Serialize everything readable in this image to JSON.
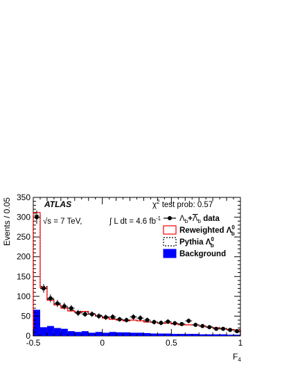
{
  "chart_data": {
    "type": "histogram",
    "experiment": "ATLAS",
    "energy_label": "√s = 7 TeV,",
    "lumi_label": "∫ L dt = 4.6 fb",
    "lumi_exponent": "-1",
    "chi2_label": "χ",
    "chi2_exponent": "2",
    "chi2_text": " test prob: 0.57",
    "xlabel": "F",
    "xlabel_sub": "4",
    "ylabel": "Events / 0.05",
    "xlim": [
      -0.5,
      1.0
    ],
    "ylim": [
      0,
      350
    ],
    "bin_width": 0.05,
    "x_ticks": [
      {
        "value": -0.5,
        "label": "-0.5"
      },
      {
        "value": 0,
        "label": "0"
      },
      {
        "value": 0.5,
        "label": "0.5"
      },
      {
        "value": 1.0,
        "label": "1"
      }
    ],
    "y_ticks": [
      {
        "value": 0,
        "label": "0"
      },
      {
        "value": 50,
        "label": "50"
      },
      {
        "value": 100,
        "label": "100"
      },
      {
        "value": 150,
        "label": "150"
      },
      {
        "value": 200,
        "label": "200"
      },
      {
        "value": 250,
        "label": "250"
      },
      {
        "value": 300,
        "label": "300"
      },
      {
        "value": 350,
        "label": "350"
      }
    ],
    "legend": {
      "placement": "top-right",
      "data": {
        "prefix": "Λ",
        "sub1": "b",
        "mid": "+",
        "overbar": "Λ",
        "sub2": "b",
        "suffix": " data"
      },
      "reweighted": {
        "text": "Reweighted Λ",
        "sup": "0",
        "sub": "b"
      },
      "pythia": {
        "text": "Pythia Λ",
        "sup": "0",
        "sub": "b"
      },
      "background": {
        "text": "Background"
      }
    },
    "series": {
      "data": {
        "x": [
          -0.475,
          -0.425,
          -0.375,
          -0.325,
          -0.275,
          -0.225,
          -0.175,
          -0.125,
          -0.075,
          -0.025,
          0.025,
          0.075,
          0.125,
          0.175,
          0.225,
          0.275,
          0.325,
          0.375,
          0.425,
          0.475,
          0.525,
          0.575,
          0.625,
          0.675,
          0.725,
          0.775,
          0.825,
          0.875,
          0.925,
          0.975
        ],
        "y": [
          300,
          120,
          95,
          82,
          75,
          70,
          58,
          55,
          55,
          50,
          47,
          48,
          42,
          40,
          48,
          45,
          40,
          35,
          33,
          36,
          32,
          30,
          38,
          28,
          25,
          22,
          18,
          18,
          15,
          12
        ],
        "err": [
          17,
          11,
          10,
          9,
          9,
          8,
          8,
          7,
          7,
          7,
          7,
          7,
          6,
          6,
          7,
          7,
          6,
          6,
          6,
          6,
          6,
          5,
          6,
          5,
          5,
          5,
          4,
          4,
          4,
          4
        ]
      },
      "reweighted": [
        312,
        122,
        90,
        78,
        70,
        63,
        60,
        62,
        55,
        50,
        45,
        42,
        40,
        38,
        40,
        38,
        35,
        35,
        32,
        33,
        30,
        28,
        28,
        28,
        25,
        22,
        20,
        18,
        16,
        15
      ],
      "pythia": [
        305,
        125,
        92,
        80,
        72,
        65,
        62,
        60,
        56,
        52,
        48,
        44,
        42,
        40,
        40,
        38,
        36,
        34,
        32,
        32,
        30,
        28,
        28,
        27,
        25,
        23,
        21,
        19,
        17,
        16
      ],
      "background": [
        66,
        22,
        25,
        20,
        18,
        12,
        10,
        12,
        8,
        10,
        8,
        10,
        9,
        9,
        8,
        8,
        7,
        6,
        6,
        6,
        5,
        5,
        5,
        5,
        4,
        4,
        4,
        4,
        3,
        3
      ]
    },
    "colors": {
      "background_fill": "#0000ff",
      "reweighted_line": "#ff0000",
      "pythia_line": "#000000",
      "data_marker": "#000000"
    }
  }
}
